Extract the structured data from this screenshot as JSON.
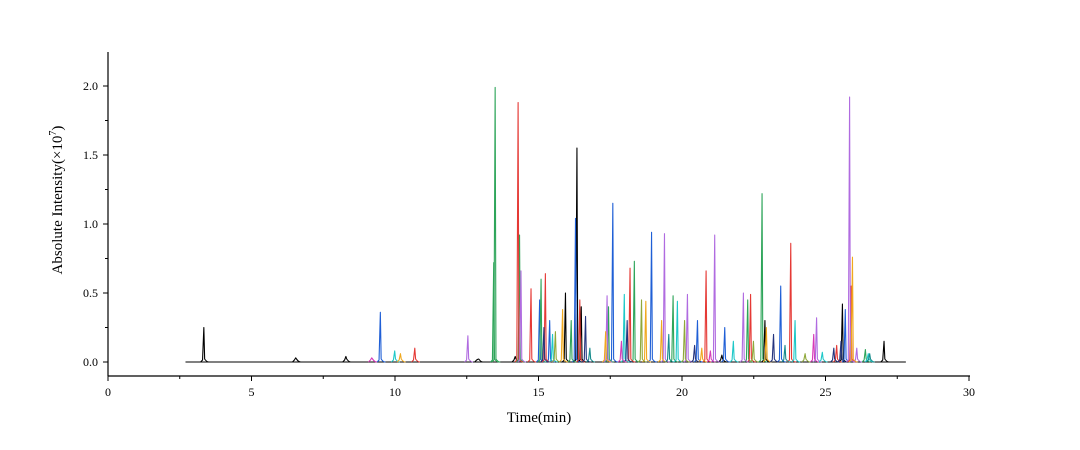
{
  "chart_data": {
    "type": "line",
    "title": "",
    "xlabel": "Time(min)",
    "ylabel_prefix": "Absolute Intensity(×10",
    "ylabel_exp": "7",
    "ylabel_suffix": ")",
    "xlim": [
      0,
      30
    ],
    "ylim": [
      -0.1,
      2.25
    ],
    "xticks": [
      0,
      5,
      10,
      15,
      20,
      25,
      30
    ],
    "xtick_labels": [
      "0",
      "5",
      "10",
      "15",
      "20",
      "25",
      "30"
    ],
    "yticks": [
      0.0,
      0.5,
      1.0,
      1.5,
      2.0
    ],
    "ytick_labels": [
      "0.0",
      "0.5",
      "1.0",
      "1.5",
      "2.0"
    ],
    "grid": false,
    "legend": "none",
    "baseline": {
      "x_start": 2.7,
      "x_end": 27.8,
      "y": 0.0
    },
    "series": [
      {
        "name": "black",
        "color": "#000000",
        "peaks": [
          [
            3.35,
            0.25
          ],
          [
            6.55,
            0.03
          ],
          [
            8.3,
            0.04
          ],
          [
            12.9,
            0.02
          ],
          [
            14.2,
            0.04
          ],
          [
            15.95,
            0.5
          ],
          [
            16.35,
            1.55
          ],
          [
            16.5,
            0.4
          ],
          [
            21.4,
            0.05
          ],
          [
            22.9,
            0.3
          ],
          [
            25.6,
            0.42
          ],
          [
            27.05,
            0.15
          ]
        ]
      },
      {
        "name": "blue",
        "color": "#1f5fd6",
        "peaks": [
          [
            9.5,
            0.36
          ],
          [
            15.05,
            0.45
          ],
          [
            15.4,
            0.3
          ],
          [
            16.3,
            1.04
          ],
          [
            17.6,
            1.15
          ],
          [
            18.95,
            0.94
          ],
          [
            20.55,
            0.3
          ],
          [
            21.5,
            0.25
          ],
          [
            23.45,
            0.55
          ],
          [
            25.7,
            0.38
          ]
        ]
      },
      {
        "name": "green",
        "color": "#2ea55a",
        "peaks": [
          [
            13.5,
            1.99
          ],
          [
            13.45,
            0.72
          ],
          [
            14.35,
            0.92
          ],
          [
            15.1,
            0.6
          ],
          [
            16.15,
            0.3
          ],
          [
            17.45,
            0.4
          ],
          [
            18.35,
            0.73
          ],
          [
            19.7,
            0.48
          ],
          [
            22.8,
            1.22
          ],
          [
            22.3,
            0.45
          ],
          [
            26.4,
            0.09
          ]
        ]
      },
      {
        "name": "red",
        "color": "#e53935",
        "peaks": [
          [
            10.7,
            0.1
          ],
          [
            14.3,
            1.88
          ],
          [
            14.75,
            0.53
          ],
          [
            15.25,
            0.64
          ],
          [
            16.45,
            0.45
          ],
          [
            18.2,
            0.68
          ],
          [
            20.85,
            0.66
          ],
          [
            22.4,
            0.49
          ],
          [
            23.8,
            0.86
          ],
          [
            25.9,
            0.55
          ],
          [
            25.4,
            0.12
          ]
        ]
      },
      {
        "name": "purple",
        "color": "#b06be0",
        "peaks": [
          [
            12.55,
            0.19
          ],
          [
            14.4,
            0.66
          ],
          [
            17.4,
            0.48
          ],
          [
            19.4,
            0.93
          ],
          [
            20.2,
            0.49
          ],
          [
            21.15,
            0.92
          ],
          [
            22.15,
            0.5
          ],
          [
            24.7,
            0.32
          ],
          [
            25.85,
            1.92
          ],
          [
            26.1,
            0.1
          ]
        ]
      },
      {
        "name": "cyan",
        "color": "#1ec8c8",
        "peaks": [
          [
            10.0,
            0.08
          ],
          [
            15.5,
            0.2
          ],
          [
            18.0,
            0.49
          ],
          [
            19.85,
            0.44
          ],
          [
            21.8,
            0.15
          ],
          [
            23.95,
            0.3
          ],
          [
            24.9,
            0.07
          ],
          [
            26.5,
            0.06
          ]
        ]
      },
      {
        "name": "orange",
        "color": "#f0a81e",
        "peaks": [
          [
            10.2,
            0.06
          ],
          [
            15.85,
            0.38
          ],
          [
            17.35,
            0.22
          ],
          [
            18.75,
            0.44
          ],
          [
            19.3,
            0.3
          ],
          [
            20.7,
            0.1
          ],
          [
            22.95,
            0.25
          ],
          [
            25.95,
            0.76
          ]
        ]
      },
      {
        "name": "olive",
        "color": "#8fa83a",
        "peaks": [
          [
            15.6,
            0.22
          ],
          [
            18.6,
            0.45
          ],
          [
            20.1,
            0.3
          ],
          [
            22.5,
            0.15
          ],
          [
            24.3,
            0.06
          ]
        ]
      },
      {
        "name": "navy",
        "color": "#24347e",
        "peaks": [
          [
            15.2,
            0.25
          ],
          [
            16.65,
            0.33
          ],
          [
            18.1,
            0.3
          ],
          [
            20.45,
            0.12
          ],
          [
            23.2,
            0.2
          ],
          [
            25.3,
            0.1
          ],
          [
            25.55,
            0.15
          ]
        ]
      },
      {
        "name": "teal",
        "color": "#168b8b",
        "peaks": [
          [
            16.8,
            0.1
          ],
          [
            19.55,
            0.2
          ],
          [
            23.6,
            0.12
          ],
          [
            26.55,
            0.06
          ]
        ]
      },
      {
        "name": "magenta",
        "color": "#d63ab8",
        "peaks": [
          [
            9.2,
            0.03
          ],
          [
            17.9,
            0.15
          ],
          [
            21.0,
            0.08
          ],
          [
            24.6,
            0.2
          ]
        ]
      }
    ]
  }
}
